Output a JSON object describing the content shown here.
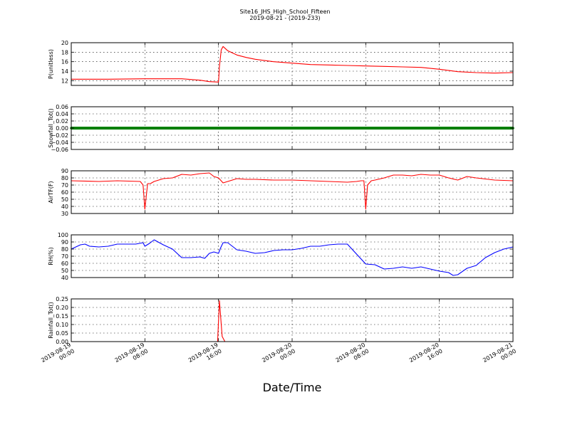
{
  "title": "Site16_JHS_High_School_Fifteen",
  "subtitle": "2019-08-21 - (2019-233)",
  "xlabel": "Date/Time",
  "x_ticks": [
    [
      "2019-08-19",
      "00:00"
    ],
    [
      "2019-08-19",
      "08:00"
    ],
    [
      "2019-08-19",
      "16:00"
    ],
    [
      "2019-08-20",
      "00:00"
    ],
    [
      "2019-08-20",
      "08:00"
    ],
    [
      "2019-08-20",
      "16:00"
    ],
    [
      "2019-08-21",
      "00:00"
    ]
  ],
  "x_range_hours": [
    0,
    48
  ],
  "chart_data": [
    {
      "type": "line",
      "ylabel": "P(unitless)",
      "ylim": [
        11,
        20
      ],
      "yticks": [
        "12",
        "14",
        "16",
        "18",
        "20"
      ],
      "yticks_values": [
        12,
        14,
        16,
        18,
        20
      ],
      "grid": true,
      "series": [
        {
          "color": "#ff0000",
          "x_hours": [
            0,
            4,
            8,
            10,
            12,
            14,
            15,
            16,
            16.1,
            16.3,
            16.5,
            17,
            18,
            19,
            20,
            22,
            24,
            26,
            28,
            30,
            32,
            34,
            36,
            38,
            40,
            42,
            44,
            46,
            48
          ],
          "values": [
            12.3,
            12.3,
            12.4,
            12.4,
            12.4,
            12.1,
            11.8,
            11.7,
            15,
            18.5,
            19.2,
            18.3,
            17.4,
            16.9,
            16.5,
            16.0,
            15.7,
            15.4,
            15.3,
            15.2,
            15.1,
            15.0,
            14.9,
            14.8,
            14.4,
            13.9,
            13.7,
            13.6,
            13.7
          ]
        }
      ]
    },
    {
      "type": "line",
      "ylabel": "Snowfall_Tot()",
      "ylim": [
        -0.06,
        0.06
      ],
      "yticks": [
        "−0.06",
        "−0.04",
        "−0.02",
        "0.00",
        "0.02",
        "0.04",
        "0.06"
      ],
      "yticks_values": [
        -0.06,
        -0.04,
        -0.02,
        0,
        0.02,
        0.04,
        0.06
      ],
      "grid": true,
      "series": [
        {
          "color": "#008000",
          "x_hours": [
            0,
            48
          ],
          "values": [
            0,
            0
          ]
        }
      ]
    },
    {
      "type": "line",
      "ylabel": "AirTF(F)",
      "ylim": [
        30,
        90
      ],
      "yticks": [
        "30",
        "40",
        "50",
        "60",
        "70",
        "80",
        "90"
      ],
      "yticks_values": [
        30,
        40,
        50,
        60,
        70,
        80,
        90
      ],
      "grid": true,
      "series": [
        {
          "color": "#ff0000",
          "x_hours": [
            0,
            3,
            5,
            7.5,
            7.8,
            8.0,
            8.3,
            8.6,
            9,
            10,
            11,
            12,
            13,
            14,
            15,
            15.5,
            16,
            16.5,
            17,
            18,
            19,
            20,
            22,
            24,
            26,
            28,
            30,
            31,
            31.5,
            31.8,
            32.0,
            32.2,
            32.6,
            33,
            34,
            35,
            36,
            37,
            38,
            39,
            40,
            41,
            42,
            43,
            44,
            46,
            48
          ],
          "values": [
            76,
            75,
            76,
            75,
            70,
            36,
            72,
            72,
            75,
            79,
            80,
            85,
            84,
            86,
            87,
            82,
            80,
            73,
            75,
            79,
            78,
            78,
            77,
            77,
            76,
            75,
            74,
            75,
            76,
            76,
            36,
            70,
            76,
            77,
            80,
            84,
            84,
            83,
            85,
            84,
            84,
            80,
            77,
            82,
            80,
            77,
            76
          ]
        }
      ]
    },
    {
      "type": "line",
      "ylabel": "RH(%)",
      "ylim": [
        40,
        100
      ],
      "yticks": [
        "40",
        "50",
        "60",
        "70",
        "80",
        "90",
        "100"
      ],
      "yticks_values": [
        40,
        50,
        60,
        70,
        80,
        90,
        100
      ],
      "grid": true,
      "series": [
        {
          "color": "#0000ff",
          "x_hours": [
            0,
            1,
            1.5,
            2,
            3,
            4,
            5,
            6,
            7,
            7.8,
            8,
            8.5,
            9,
            10,
            11,
            11.5,
            12,
            12.5,
            13,
            14,
            14.5,
            15,
            15.5,
            16,
            16.2,
            16.5,
            17,
            18,
            19,
            20,
            21,
            22,
            23,
            24,
            25,
            26,
            27,
            28,
            29,
            30,
            31,
            32,
            33,
            34,
            35,
            36,
            37,
            38,
            39,
            40,
            41,
            41.5,
            42,
            43,
            44,
            45,
            46,
            47,
            48
          ],
          "values": [
            80,
            86,
            87,
            84,
            83,
            84,
            87,
            87,
            87,
            89,
            84,
            88,
            93,
            86,
            80,
            74,
            68,
            68,
            68,
            69,
            67,
            74,
            76,
            74,
            81,
            89,
            89,
            79,
            77,
            74,
            75,
            78,
            79,
            79,
            81,
            84,
            84,
            86,
            87,
            87,
            73,
            59,
            58,
            52,
            53,
            55,
            53,
            55,
            52,
            49,
            47,
            43,
            44,
            53,
            57,
            68,
            75,
            80,
            83
          ]
        }
      ]
    },
    {
      "type": "line",
      "ylabel": "Rainfall_Tot()",
      "ylim": [
        0,
        0.25
      ],
      "yticks": [
        "0.00",
        "0.05",
        "0.10",
        "0.15",
        "0.20",
        "0.25"
      ],
      "yticks_values": [
        0,
        0.05,
        0.1,
        0.15,
        0.2,
        0.25
      ],
      "grid": true,
      "series": [
        {
          "color": "#ff0000",
          "x_hours": [
            0,
            15.9,
            16.1,
            16.4,
            16.7,
            48
          ],
          "values": [
            0,
            0,
            0.24,
            0.03,
            0,
            0
          ]
        }
      ]
    }
  ]
}
